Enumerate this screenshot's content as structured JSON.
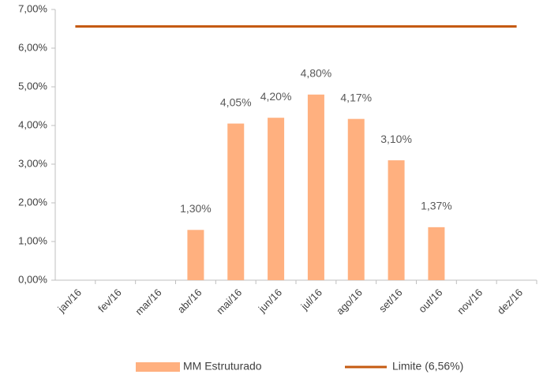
{
  "chart_data": {
    "type": "bar",
    "categories": [
      "jan/16",
      "fev/16",
      "mar/16",
      "abr/16",
      "mai/16",
      "jun/16",
      "jul/16",
      "ago/16",
      "set/16",
      "out/16",
      "nov/16",
      "dez/16"
    ],
    "series": [
      {
        "name": "MM Estruturado",
        "type": "bar",
        "color": "#ffb07f",
        "values": [
          null,
          null,
          null,
          1.3,
          4.05,
          4.2,
          4.8,
          4.17,
          3.1,
          1.37,
          null,
          null
        ],
        "value_labels": [
          null,
          null,
          null,
          "1,30%",
          "4,05%",
          "4,20%",
          "4,80%",
          "4,17%",
          "3,10%",
          "1,37%",
          null,
          null
        ]
      },
      {
        "name": "Limite (6,56%)",
        "type": "line",
        "color": "#c55a11",
        "values": [
          6.56,
          6.56,
          6.56,
          6.56,
          6.56,
          6.56,
          6.56,
          6.56,
          6.56,
          6.56,
          6.56,
          6.56
        ]
      }
    ],
    "ylim": [
      0,
      7
    ],
    "yticks": [
      {
        "value": 0,
        "label": "0,00%"
      },
      {
        "value": 1,
        "label": "1,00%"
      },
      {
        "value": 2,
        "label": "2,00%"
      },
      {
        "value": 3,
        "label": "3,00%"
      },
      {
        "value": 4,
        "label": "4,00%"
      },
      {
        "value": 5,
        "label": "5,00%"
      },
      {
        "value": 6,
        "label": "6,00%"
      },
      {
        "value": 7,
        "label": "7,00%"
      }
    ],
    "grid": false,
    "legend": "bottom"
  }
}
